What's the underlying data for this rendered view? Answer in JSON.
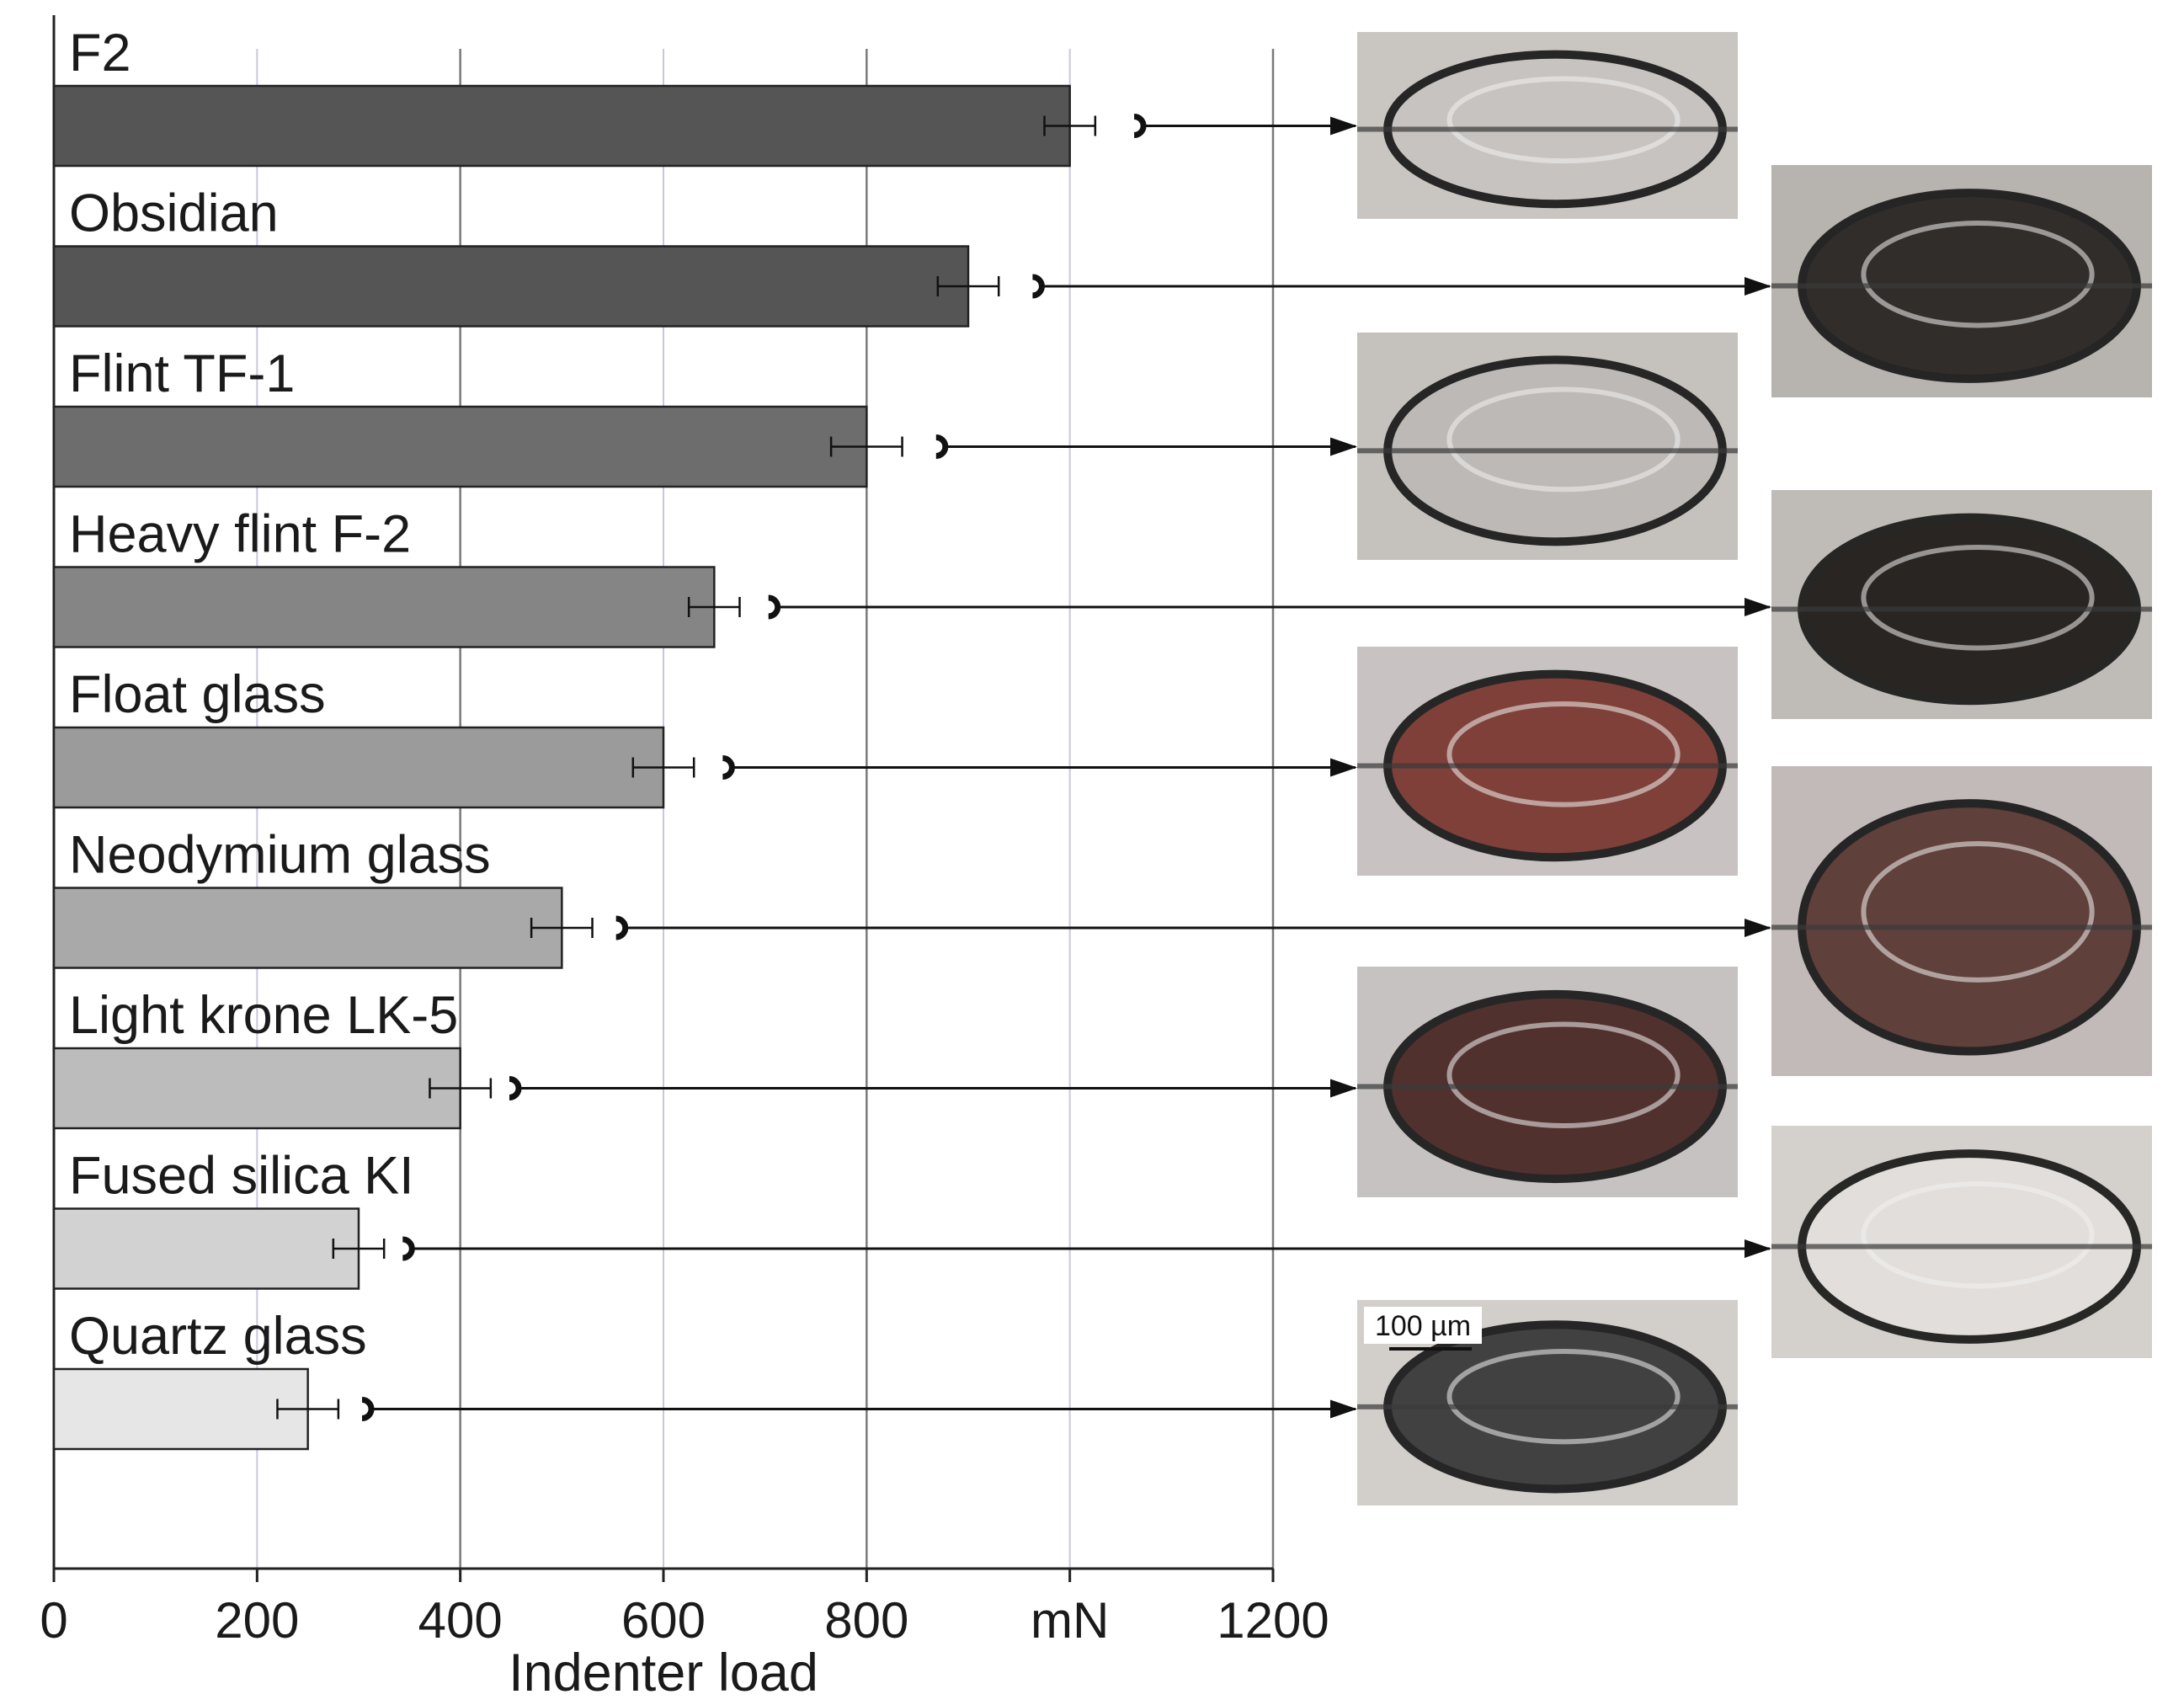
{
  "chart_data": {
    "type": "bar",
    "orientation": "horizontal",
    "xlabel": "Indenter load",
    "xlim": [
      0,
      1200
    ],
    "xticks": [
      0,
      200,
      400,
      600,
      800,
      1000,
      1200
    ],
    "xtick_labels": [
      "0",
      "200",
      "400",
      "600",
      "800",
      "mN",
      "1200"
    ],
    "grid": true,
    "categories": [
      "F2",
      "Obsidian",
      "Flint TF-1",
      "Heavy flint F-2",
      "Float glass",
      "Neodymium glass",
      "Light krone LK-5",
      "Fused silica KI",
      "Quartz glass"
    ],
    "values": [
      1000,
      900,
      800,
      650,
      600,
      500,
      400,
      300,
      250
    ],
    "error": [
      25,
      30,
      35,
      25,
      30,
      30,
      30,
      25,
      30
    ],
    "crack_onset": [
      1065,
      965,
      870,
      705,
      660,
      555,
      450,
      345,
      305
    ],
    "bar_colors": [
      "#555555",
      "#555555",
      "#6d6d6d",
      "#858585",
      "#9b9b9b",
      "#a9a9a9",
      "#bcbcbc",
      "#d2d2d2",
      "#e6e6e6"
    ],
    "micrograph_tones": [
      "#c7c3c0",
      "#2a2624",
      "#bdb9b6",
      "#201d1c",
      "#7a3a32",
      "#5a3a34",
      "#4b2a26",
      "#e2dfdc",
      "#3a3a3a"
    ],
    "micrograph_backgrounds": [
      "#c9c6c2",
      "#b7b3ae",
      "#c5c2be",
      "#bfbcb8",
      "#c9c2c2",
      "#c1bab8",
      "#c7c2c2",
      "#d4d1cd",
      "#d2cfcb"
    ],
    "scale_bar_label": "100 µm"
  }
}
